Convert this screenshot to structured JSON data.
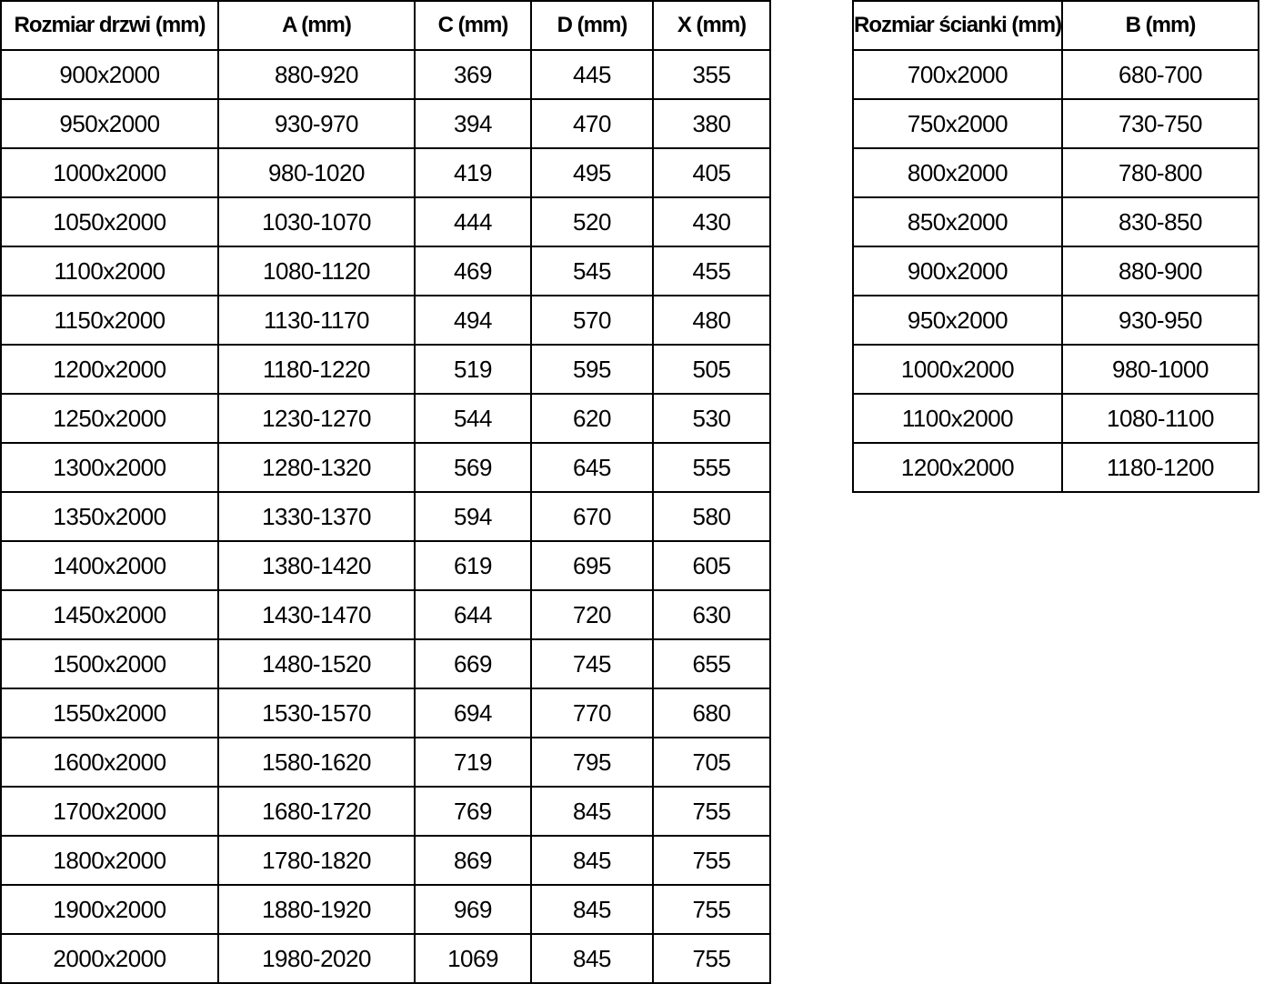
{
  "door_table": {
    "headers": [
      "Rozmiar drzwi (mm)",
      "A (mm)",
      "C (mm)",
      "D (mm)",
      "X (mm)"
    ],
    "rows": [
      [
        "900x2000",
        "880-920",
        "369",
        "445",
        "355"
      ],
      [
        "950x2000",
        "930-970",
        "394",
        "470",
        "380"
      ],
      [
        "1000x2000",
        "980-1020",
        "419",
        "495",
        "405"
      ],
      [
        "1050x2000",
        "1030-1070",
        "444",
        "520",
        "430"
      ],
      [
        "1100x2000",
        "1080-1120",
        "469",
        "545",
        "455"
      ],
      [
        "1150x2000",
        "1130-1170",
        "494",
        "570",
        "480"
      ],
      [
        "1200x2000",
        "1180-1220",
        "519",
        "595",
        "505"
      ],
      [
        "1250x2000",
        "1230-1270",
        "544",
        "620",
        "530"
      ],
      [
        "1300x2000",
        "1280-1320",
        "569",
        "645",
        "555"
      ],
      [
        "1350x2000",
        "1330-1370",
        "594",
        "670",
        "580"
      ],
      [
        "1400x2000",
        "1380-1420",
        "619",
        "695",
        "605"
      ],
      [
        "1450x2000",
        "1430-1470",
        "644",
        "720",
        "630"
      ],
      [
        "1500x2000",
        "1480-1520",
        "669",
        "745",
        "655"
      ],
      [
        "1550x2000",
        "1530-1570",
        "694",
        "770",
        "680"
      ],
      [
        "1600x2000",
        "1580-1620",
        "719",
        "795",
        "705"
      ],
      [
        "1700x2000",
        "1680-1720",
        "769",
        "845",
        "755"
      ],
      [
        "1800x2000",
        "1780-1820",
        "869",
        "845",
        "755"
      ],
      [
        "1900x2000",
        "1880-1920",
        "969",
        "845",
        "755"
      ],
      [
        "2000x2000",
        "1980-2020",
        "1069",
        "845",
        "755"
      ]
    ]
  },
  "wall_table": {
    "headers": [
      "Rozmiar ścianki (mm)",
      "B (mm)"
    ],
    "rows": [
      [
        "700x2000",
        "680-700"
      ],
      [
        "750x2000",
        "730-750"
      ],
      [
        "800x2000",
        "780-800"
      ],
      [
        "850x2000",
        "830-850"
      ],
      [
        "900x2000",
        "880-900"
      ],
      [
        "950x2000",
        "930-950"
      ],
      [
        "1000x2000",
        "980-1000"
      ],
      [
        "1100x2000",
        "1080-1100"
      ],
      [
        "1200x2000",
        "1180-1200"
      ]
    ]
  },
  "colors": {
    "border": "#000000",
    "text": "#000000",
    "background": "#ffffff"
  }
}
